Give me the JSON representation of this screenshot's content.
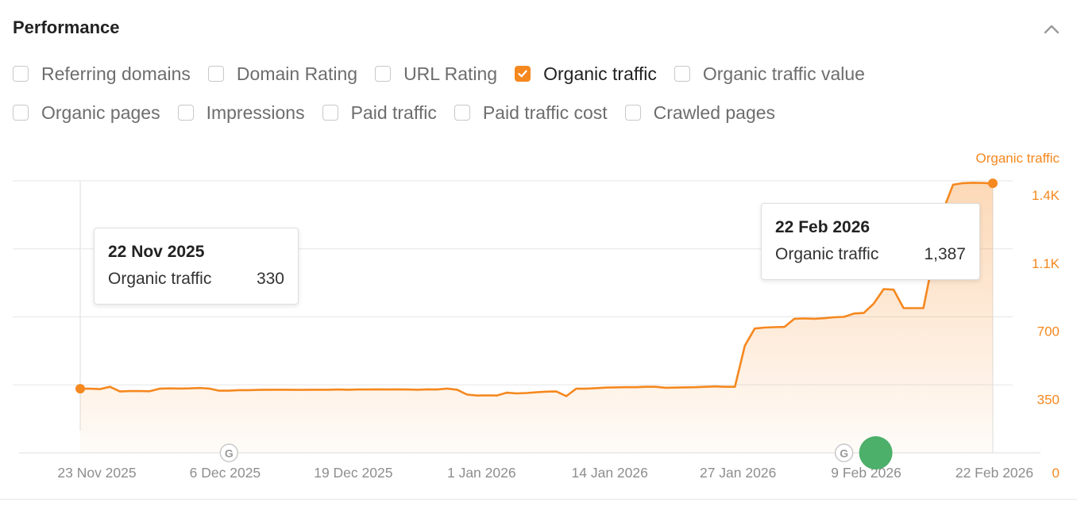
{
  "panel": {
    "title": "Performance",
    "collapse_icon": "chevron-up-icon"
  },
  "metrics": [
    {
      "label": "Referring domains",
      "checked": false
    },
    {
      "label": "Domain Rating",
      "checked": false
    },
    {
      "label": "URL Rating",
      "checked": false
    },
    {
      "label": "Organic traffic",
      "checked": true
    },
    {
      "label": "Organic traffic value",
      "checked": false
    },
    {
      "label": "Organic pages",
      "checked": false
    },
    {
      "label": "Impressions",
      "checked": false
    },
    {
      "label": "Paid traffic",
      "checked": false
    },
    {
      "label": "Paid traffic cost",
      "checked": false
    },
    {
      "label": "Crawled pages",
      "checked": false
    }
  ],
  "colors": {
    "accent": "#f5881f",
    "update_marker": "#4caf6a"
  },
  "tooltips": [
    {
      "date": "22 Nov 2025",
      "metric": "Organic traffic",
      "value": "330"
    },
    {
      "date": "22 Feb 2026",
      "metric": "Organic traffic",
      "value": "1,387"
    }
  ],
  "chart_data": {
    "type": "area",
    "series_label": "Organic traffic",
    "x_ticks": [
      "23 Nov 2025",
      "6 Dec 2025",
      "19 Dec 2025",
      "1 Jan 2026",
      "14 Jan 2026",
      "27 Jan 2026",
      "9 Feb 2026",
      "22 Feb 2026"
    ],
    "y_ticks": [
      {
        "value": 0,
        "label": "0"
      },
      {
        "value": 350,
        "label": "350"
      },
      {
        "value": 700,
        "label": "700"
      },
      {
        "value": 1050,
        "label": "1.1K"
      },
      {
        "value": 1400,
        "label": "1.4K"
      }
    ],
    "ylim": [
      0,
      1400
    ],
    "x_range": [
      "2025-11-22",
      "2026-02-22"
    ],
    "grid": true,
    "series": [
      {
        "name": "Organic traffic",
        "points": [
          [
            "2025-11-22",
            330
          ],
          [
            "2025-11-23",
            330
          ],
          [
            "2025-11-24",
            328
          ],
          [
            "2025-11-25",
            340
          ],
          [
            "2025-11-26",
            316
          ],
          [
            "2025-11-27",
            318
          ],
          [
            "2025-11-28",
            318
          ],
          [
            "2025-11-29",
            317
          ],
          [
            "2025-11-30",
            330
          ],
          [
            "2025-12-01",
            332
          ],
          [
            "2025-12-02",
            331
          ],
          [
            "2025-12-03",
            332
          ],
          [
            "2025-12-04",
            334
          ],
          [
            "2025-12-05",
            331
          ],
          [
            "2025-12-06",
            320
          ],
          [
            "2025-12-07",
            320
          ],
          [
            "2025-12-08",
            323
          ],
          [
            "2025-12-09",
            323
          ],
          [
            "2025-12-10",
            324
          ],
          [
            "2025-12-11",
            325
          ],
          [
            "2025-12-12",
            325
          ],
          [
            "2025-12-13",
            325
          ],
          [
            "2025-12-14",
            324
          ],
          [
            "2025-12-15",
            325
          ],
          [
            "2025-12-16",
            325
          ],
          [
            "2025-12-17",
            325
          ],
          [
            "2025-12-18",
            326
          ],
          [
            "2025-12-19",
            325
          ],
          [
            "2025-12-20",
            326
          ],
          [
            "2025-12-21",
            326
          ],
          [
            "2025-12-22",
            327
          ],
          [
            "2025-12-23",
            326
          ],
          [
            "2025-12-24",
            327
          ],
          [
            "2025-12-25",
            326
          ],
          [
            "2025-12-26",
            325
          ],
          [
            "2025-12-27",
            327
          ],
          [
            "2025-12-28",
            326
          ],
          [
            "2025-12-29",
            331
          ],
          [
            "2025-12-30",
            325
          ],
          [
            "2025-12-31",
            300
          ],
          [
            "2026-01-01",
            295
          ],
          [
            "2026-01-02",
            296
          ],
          [
            "2026-01-03",
            295
          ],
          [
            "2026-01-04",
            310
          ],
          [
            "2026-01-05",
            306
          ],
          [
            "2026-01-06",
            308
          ],
          [
            "2026-01-07",
            312
          ],
          [
            "2026-01-08",
            315
          ],
          [
            "2026-01-09",
            316
          ],
          [
            "2026-01-10",
            292
          ],
          [
            "2026-01-11",
            330
          ],
          [
            "2026-01-12",
            330
          ],
          [
            "2026-01-13",
            333
          ],
          [
            "2026-01-14",
            336
          ],
          [
            "2026-01-15",
            337
          ],
          [
            "2026-01-16",
            338
          ],
          [
            "2026-01-17",
            338
          ],
          [
            "2026-01-18",
            340
          ],
          [
            "2026-01-19",
            340
          ],
          [
            "2026-01-20",
            335
          ],
          [
            "2026-01-21",
            336
          ],
          [
            "2026-01-22",
            337
          ],
          [
            "2026-01-23",
            338
          ],
          [
            "2026-01-24",
            340
          ],
          [
            "2026-01-25",
            342
          ],
          [
            "2026-01-26",
            340
          ],
          [
            "2026-01-27",
            340
          ],
          [
            "2026-01-28",
            552
          ],
          [
            "2026-01-29",
            640
          ],
          [
            "2026-01-30",
            645
          ],
          [
            "2026-01-31",
            647
          ],
          [
            "2026-02-01",
            648
          ],
          [
            "2026-02-02",
            690
          ],
          [
            "2026-02-03",
            692
          ],
          [
            "2026-02-04",
            690
          ],
          [
            "2026-02-05",
            693
          ],
          [
            "2026-02-06",
            698
          ],
          [
            "2026-02-07",
            700
          ],
          [
            "2026-02-08",
            717
          ],
          [
            "2026-02-09",
            720
          ],
          [
            "2026-02-10",
            768
          ],
          [
            "2026-02-11",
            843
          ],
          [
            "2026-02-12",
            840
          ],
          [
            "2026-02-13",
            745
          ],
          [
            "2026-02-14",
            745
          ],
          [
            "2026-02-15",
            745
          ],
          [
            "2026-02-16",
            1000
          ],
          [
            "2026-02-17",
            1250
          ],
          [
            "2026-02-18",
            1380
          ],
          [
            "2026-02-19",
            1388
          ],
          [
            "2026-02-20",
            1390
          ],
          [
            "2026-02-21",
            1389
          ],
          [
            "2026-02-22",
            1387
          ]
        ]
      }
    ],
    "google_update_markers": [
      "2025-12-07",
      "2026-02-07"
    ],
    "active_update_marker": "2026-02-09"
  }
}
